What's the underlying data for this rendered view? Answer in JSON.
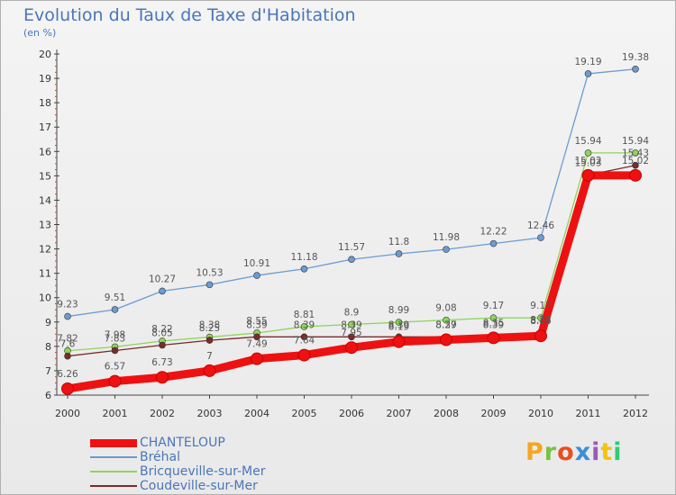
{
  "title": "Evolution du Taux de Taxe d'Habitation",
  "unit_label": "(en %)",
  "logo_text": "Proxiti",
  "logo_colors": [
    "#f5a623",
    "#7cc142",
    "#e94e1b",
    "#3b8fd6",
    "#9b59b6",
    "#f1c40f",
    "#2ecc71"
  ],
  "chart_data": {
    "type": "line",
    "title": "Evolution du Taux de Taxe d'Habitation",
    "ylabel": "(en %)",
    "xlabel": "",
    "x": [
      "2000",
      "2001",
      "2002",
      "2003",
      "2004",
      "2005",
      "2006",
      "2007",
      "2008",
      "2009",
      "2010",
      "2011",
      "2012"
    ],
    "ylim": [
      6,
      20
    ],
    "yticks": [
      "6",
      "7",
      "8",
      "9",
      "10",
      "11",
      "12",
      "13",
      "14",
      "15",
      "16",
      "17",
      "18",
      "19",
      "20"
    ],
    "grid": false,
    "legend_position": "bottom-left",
    "series": [
      {
        "name": "CHANTELOUP",
        "color": "#ee1111",
        "values": [
          6.26,
          6.57,
          6.73,
          7,
          7.49,
          7.64,
          7.95,
          8.19,
          8.27,
          8.35,
          8.43,
          15.02,
          15.02
        ],
        "labels": [
          "6.26",
          "6.57",
          "6.73",
          "7",
          "7.49",
          "7.64",
          "7.95",
          "8.19",
          "8.27",
          "8.35",
          "8.43",
          "15.02",
          "15.02"
        ]
      },
      {
        "name": "Bréhal",
        "color": "#6b9bd2",
        "values": [
          9.23,
          9.51,
          10.27,
          10.53,
          10.91,
          11.18,
          11.57,
          11.8,
          11.98,
          12.22,
          12.46,
          19.19,
          19.38
        ],
        "labels": [
          "9.23",
          "9.51",
          "10.27",
          "10.53",
          "10.91",
          "11.18",
          "11.57",
          "11.8",
          "11.98",
          "12.22",
          "12.46",
          "19.19",
          "19.38"
        ]
      },
      {
        "name": "Bricqueville-sur-Mer",
        "color": "#8fd45a",
        "values": [
          7.82,
          7.98,
          8.22,
          8.38,
          8.55,
          8.81,
          8.9,
          8.99,
          9.08,
          9.17,
          9.17,
          15.94,
          15.94
        ],
        "labels": [
          "7.82",
          "7.98",
          "8.22",
          "8.38",
          "8.55",
          "8.81",
          "8.9",
          "8.99",
          "9.08",
          "9.17",
          "9.17",
          "15.94",
          "15.94"
        ]
      },
      {
        "name": "Coudeville-sur-Mer",
        "color": "#7a2a2a",
        "values": [
          7.6,
          7.83,
          8.05,
          8.25,
          8.39,
          8.39,
          8.39,
          8.39,
          8.39,
          8.39,
          8.58,
          15.03,
          15.43
        ],
        "labels": [
          "7.6",
          "7.83",
          "8.05",
          "8.25",
          "8.39",
          "8.39",
          "8.39",
          "8.39",
          "8.39",
          "8.39",
          "8.58",
          "15.03",
          "15.43"
        ]
      }
    ]
  }
}
